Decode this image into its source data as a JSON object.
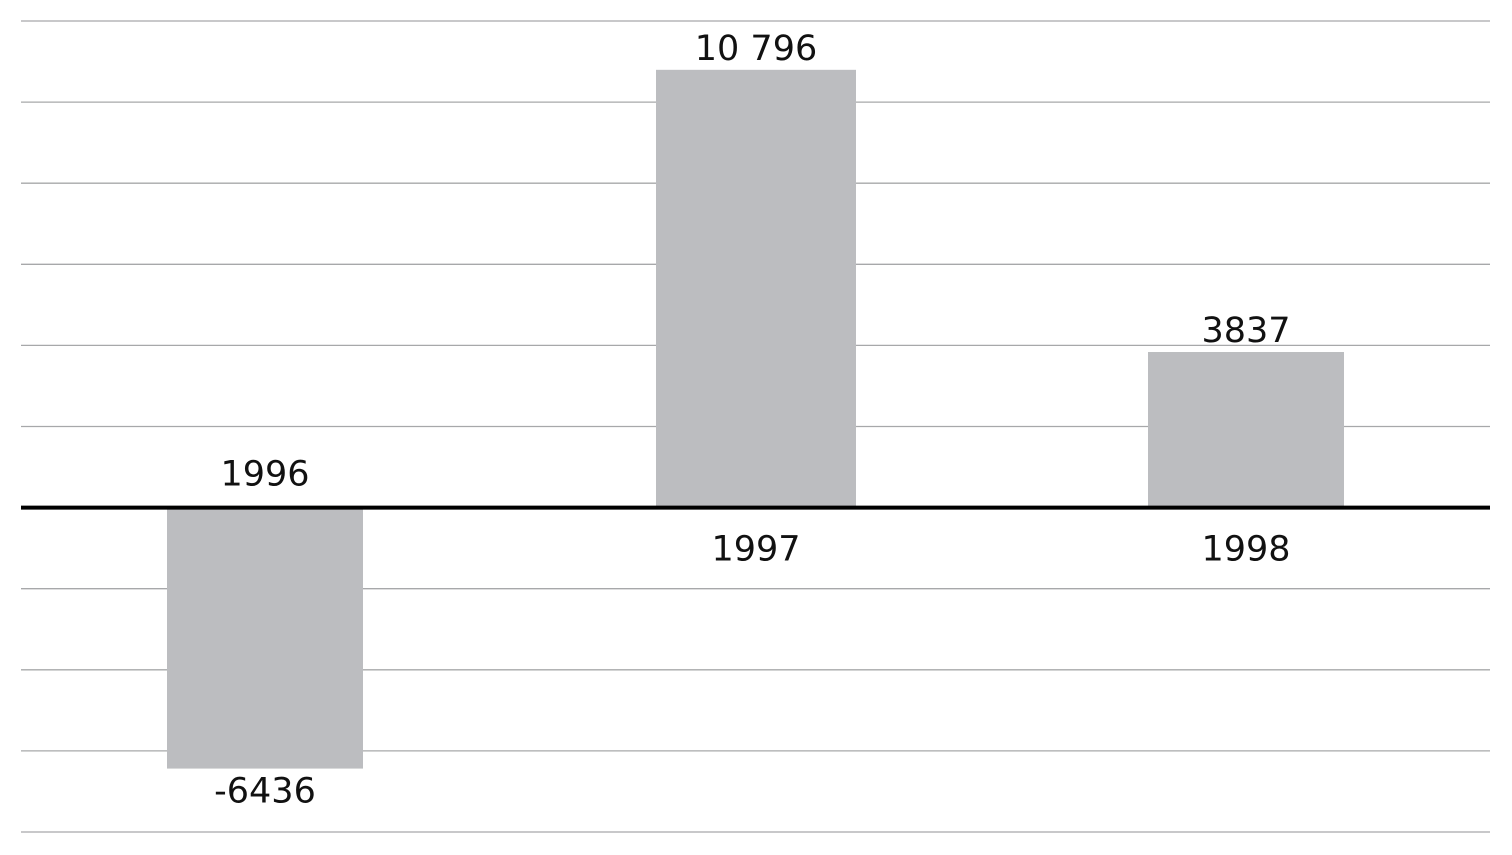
{
  "chart_data": {
    "type": "bar",
    "categories": [
      "1996",
      "1997",
      "1998"
    ],
    "values": [
      -6436,
      10796,
      3837
    ],
    "value_labels": [
      "-6436",
      "10 796",
      "3837"
    ],
    "title": "",
    "xlabel": "",
    "ylabel": "",
    "ylim": [
      -8000,
      12000
    ],
    "grid_step": 2000,
    "grid": true,
    "y_tick_labels_shown": false,
    "colors": {
      "bar": "#bcbdc0",
      "grid": "#a7a8aa",
      "axis": "#000000"
    }
  }
}
